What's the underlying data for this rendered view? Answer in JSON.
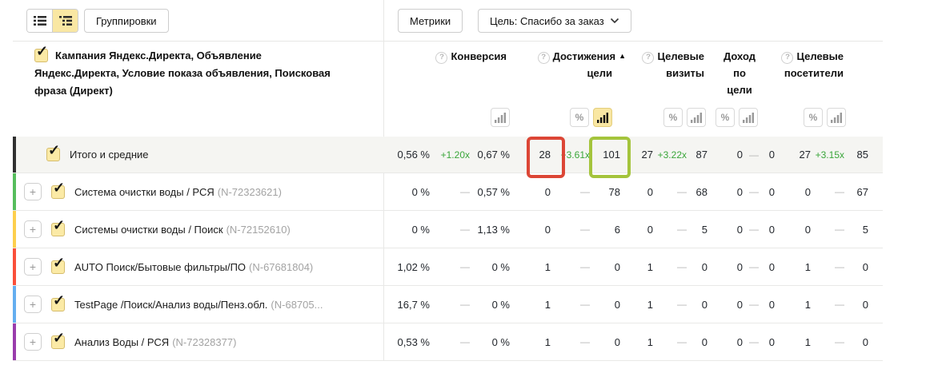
{
  "toolbar": {
    "groupings_label": "Группировки",
    "metrics_label": "Метрики",
    "goal_label": "Цель: Спасибо за заказ"
  },
  "dimension_header": {
    "label": "Кампания Яндекс.Директа, Объявление\nЯндекс.Директа, Условие показа объявления, Поисковая\nфраза (Директ)"
  },
  "columns": [
    {
      "line1": "Конверсия",
      "line2": "",
      "has_help": true
    },
    {
      "line1": "Достижения",
      "line2": "цели",
      "has_help": true,
      "sort": "asc"
    },
    {
      "line1": "Целевые",
      "line2": "визиты",
      "has_help": true
    },
    {
      "line1": "Доход",
      "line2": "по",
      "line3": "цели",
      "has_help": false
    },
    {
      "line1": "Целевые",
      "line2": "посетители",
      "has_help": true
    }
  ],
  "icons": {
    "check": "✓",
    "plus": "+",
    "question": "?",
    "percent": "%",
    "sort_asc": "▲"
  },
  "colors": {
    "accent_active_bg": "#f9e7a3",
    "positive_change": "#3aa63a",
    "annotation_red": "#dc4636",
    "annotation_green": "#a4c43c"
  },
  "rows": [
    {
      "total": true,
      "expandable": false,
      "marker": "#303030",
      "name": "Итого и средние",
      "id": "",
      "metrics": [
        {
          "v1": "0,56 %",
          "chg": "+1.20x",
          "v2": "0,67 %"
        },
        {
          "v1": "28",
          "chg": "+3.61x",
          "v2": "101"
        },
        {
          "v1": "27",
          "chg": "+3.22x",
          "v2": "87"
        },
        {
          "v1": "0",
          "chg": "—",
          "v2": "0"
        },
        {
          "v1": "27",
          "chg": "+3.15x",
          "v2": "85"
        }
      ]
    },
    {
      "total": false,
      "expandable": true,
      "marker": "#56bd5c",
      "name": "Система очистки воды / РСЯ",
      "id": "(N-72323621)",
      "metrics": [
        {
          "v1": "0 %",
          "chg": "—",
          "v2": "0,57 %"
        },
        {
          "v1": "0",
          "chg": "—",
          "v2": "78"
        },
        {
          "v1": "0",
          "chg": "—",
          "v2": "68"
        },
        {
          "v1": "0",
          "chg": "—",
          "v2": "0"
        },
        {
          "v1": "0",
          "chg": "—",
          "v2": "67"
        }
      ]
    },
    {
      "total": false,
      "expandable": true,
      "marker": "#fdcf4d",
      "name": "Системы очистки воды / Поиск",
      "id": "(N-72152610)",
      "metrics": [
        {
          "v1": "0 %",
          "chg": "—",
          "v2": "1,13 %"
        },
        {
          "v1": "0",
          "chg": "—",
          "v2": "6"
        },
        {
          "v1": "0",
          "chg": "—",
          "v2": "5"
        },
        {
          "v1": "0",
          "chg": "—",
          "v2": "0"
        },
        {
          "v1": "0",
          "chg": "—",
          "v2": "5"
        }
      ]
    },
    {
      "total": false,
      "expandable": true,
      "marker": "#fa4f3a",
      "name": "AUTO Поиск/Бытовые фильтры/ПО",
      "id": "(N-67681804)",
      "metrics": [
        {
          "v1": "1,02 %",
          "chg": "—",
          "v2": "0 %"
        },
        {
          "v1": "1",
          "chg": "—",
          "v2": "0"
        },
        {
          "v1": "1",
          "chg": "—",
          "v2": "0"
        },
        {
          "v1": "0",
          "chg": "—",
          "v2": "0"
        },
        {
          "v1": "1",
          "chg": "—",
          "v2": "0"
        }
      ]
    },
    {
      "total": false,
      "expandable": true,
      "marker": "#64aef0",
      "name": "TestPage /Поиск/Анализ воды/Пенз.обл.",
      "id": "(N-68705...",
      "metrics": [
        {
          "v1": "16,7 %",
          "chg": "—",
          "v2": "0 %"
        },
        {
          "v1": "1",
          "chg": "—",
          "v2": "0"
        },
        {
          "v1": "1",
          "chg": "—",
          "v2": "0"
        },
        {
          "v1": "0",
          "chg": "—",
          "v2": "0"
        },
        {
          "v1": "1",
          "chg": "—",
          "v2": "0"
        }
      ]
    },
    {
      "total": false,
      "expandable": true,
      "marker": "#9a3cac",
      "name": "Анализ Воды / РСЯ",
      "id": "(N-72328377)",
      "metrics": [
        {
          "v1": "0,53 %",
          "chg": "—",
          "v2": "0 %"
        },
        {
          "v1": "1",
          "chg": "—",
          "v2": "0"
        },
        {
          "v1": "1",
          "chg": "—",
          "v2": "0"
        },
        {
          "v1": "0",
          "chg": "—",
          "v2": "0"
        },
        {
          "v1": "1",
          "chg": "—",
          "v2": "0"
        }
      ]
    }
  ]
}
